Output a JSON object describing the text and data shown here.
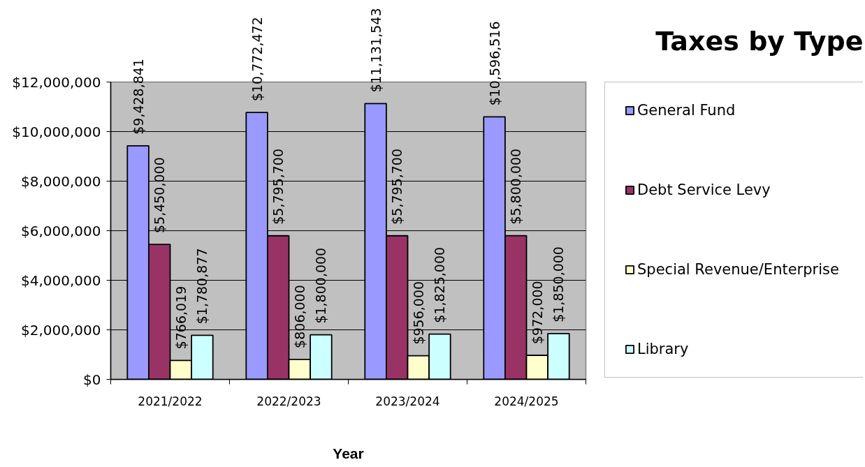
{
  "chart_data": {
    "type": "bar",
    "title": "Taxes by Type",
    "xlabel": "Year",
    "categories": [
      "2021/2022",
      "2022/2023",
      "2023/2024",
      "2024/2025"
    ],
    "series": [
      {
        "name": "General Fund",
        "color": "#9999ff",
        "values": [
          9428841,
          10772472,
          11131543,
          10596516
        ],
        "value_labels": [
          "$9,428,841",
          "$10,772,472",
          "$11,131,543",
          "$10,596,516"
        ]
      },
      {
        "name": "Debt Service Levy",
        "color": "#993366",
        "values": [
          5450000,
          5795700,
          5795700,
          5800000
        ],
        "value_labels": [
          "$5,450,000",
          "$5,795,700",
          "$5,795,700",
          "$5,800,000"
        ]
      },
      {
        "name": "Special Revenue/Enterprise",
        "color": "#ffffcc",
        "values": [
          766019,
          806000,
          956000,
          972000
        ],
        "value_labels": [
          "$766,019",
          "$806,000",
          "$956,000",
          "$972,000"
        ]
      },
      {
        "name": "Library",
        "color": "#ccffff",
        "values": [
          1780877,
          1800000,
          1825000,
          1850000
        ],
        "value_labels": [
          "$1,780,877",
          "$1,800,000",
          "$1,825,000",
          "$1,850,000"
        ]
      }
    ],
    "ylim": [
      0,
      12000000
    ],
    "yticks": [
      {
        "value": 0,
        "label": "$0"
      },
      {
        "value": 2000000,
        "label": "$2,000,000"
      },
      {
        "value": 4000000,
        "label": "$4,000,000"
      },
      {
        "value": 6000000,
        "label": "$6,000,000"
      },
      {
        "value": 8000000,
        "label": "$8,000,000"
      },
      {
        "value": 10000000,
        "label": "$10,000,000"
      },
      {
        "value": 12000000,
        "label": "$12,000,000"
      }
    ],
    "grid": "y",
    "legend": "right"
  }
}
